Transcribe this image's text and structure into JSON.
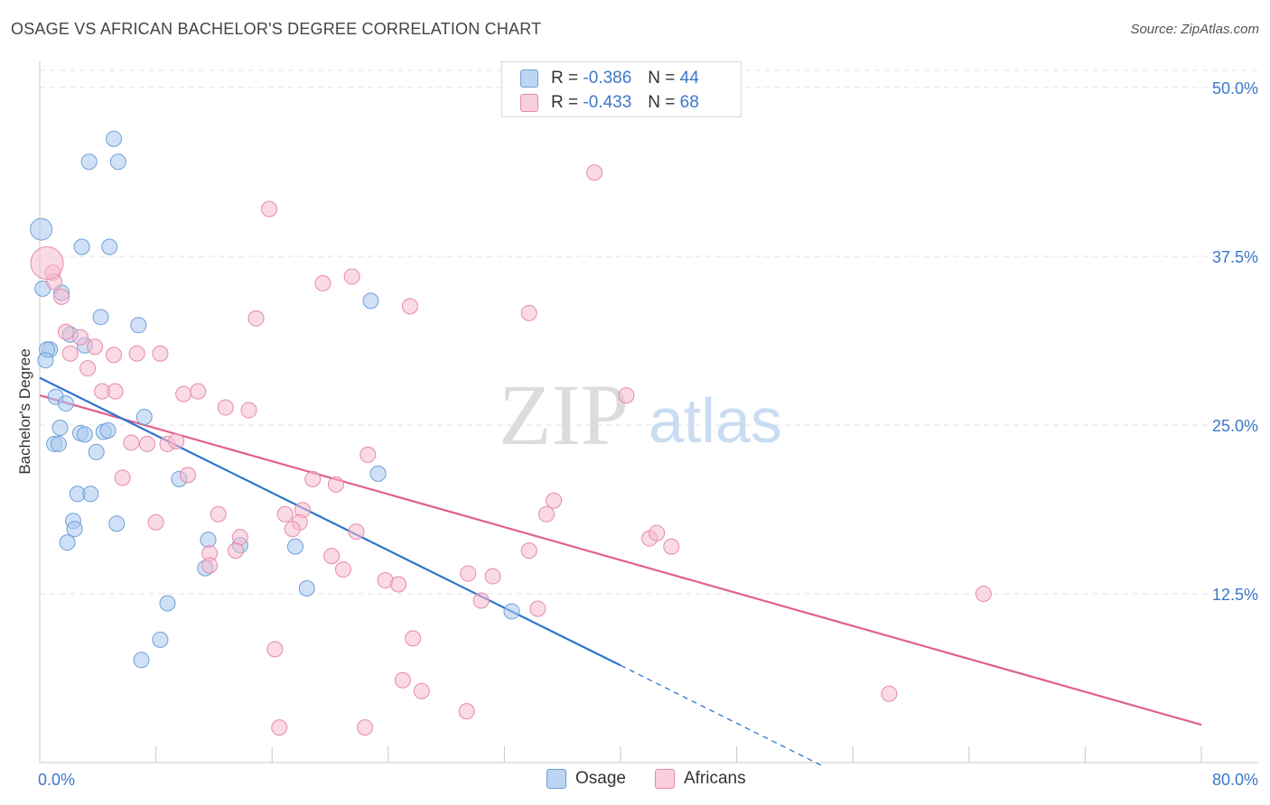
{
  "title": "OSAGE VS AFRICAN BACHELOR'S DEGREE CORRELATION CHART",
  "source": "Source: ZipAtlas.com",
  "watermark": {
    "zip": "ZIP",
    "atlas": "atlas"
  },
  "colors": {
    "osage_fill": "#aac8f0",
    "osage_stroke": "#6d9fd8",
    "osage_line": "#2f74d0",
    "africans_fill": "#f6bcd0",
    "africans_stroke": "#e58aa9",
    "africans_line": "#e0608a",
    "tick_text": "#3b78c9",
    "grid": "#e2e2e2"
  },
  "legend": {
    "osage": {
      "r_label": "R =",
      "r_value": "-0.386",
      "n_label": "N =",
      "n_value": "44"
    },
    "africans": {
      "r_label": "R =",
      "r_value": "-0.433",
      "n_label": "N =",
      "n_value": "68"
    }
  },
  "chart_data": {
    "type": "scatter",
    "title": "OSAGE VS AFRICAN BACHELOR'S DEGREE CORRELATION CHART",
    "xlabel": "",
    "ylabel": "Bachelor's Degree",
    "xlim": [
      0,
      80
    ],
    "ylim": [
      0,
      52
    ],
    "x_tick_labels": {
      "min": "0.0%",
      "max": "80.0%"
    },
    "y_ticks": [
      {
        "value": 12.5,
        "label": "12.5%"
      },
      {
        "value": 25.0,
        "label": "25.0%"
      },
      {
        "value": 37.5,
        "label": "37.5%"
      },
      {
        "value": 50.0,
        "label": "50.0%"
      }
    ],
    "series": [
      {
        "name": "Osage",
        "r": -0.386,
        "n": 44,
        "trend": {
          "x0": 0,
          "y0": 28.5,
          "x1": 40,
          "y1": 7.2,
          "dashed_to_x": 54,
          "dashed_to_y": -0.3
        },
        "points": [
          [
            5.1,
            46.2
          ],
          [
            3.4,
            44.5
          ],
          [
            5.4,
            44.5
          ],
          [
            0.1,
            39.5
          ],
          [
            2.9,
            38.2
          ],
          [
            4.8,
            38.2
          ],
          [
            0.2,
            35.1
          ],
          [
            1.5,
            34.8
          ],
          [
            4.2,
            33.0
          ],
          [
            6.8,
            32.4
          ],
          [
            2.1,
            31.7
          ],
          [
            3.1,
            30.9
          ],
          [
            0.7,
            30.6
          ],
          [
            0.5,
            30.6
          ],
          [
            0.4,
            29.8
          ],
          [
            22.8,
            34.2
          ],
          [
            1.1,
            27.1
          ],
          [
            1.8,
            26.6
          ],
          [
            7.2,
            25.6
          ],
          [
            1.4,
            24.8
          ],
          [
            2.8,
            24.4
          ],
          [
            3.1,
            24.3
          ],
          [
            4.4,
            24.5
          ],
          [
            4.7,
            24.6
          ],
          [
            1.0,
            23.6
          ],
          [
            1.3,
            23.6
          ],
          [
            3.9,
            23.0
          ],
          [
            23.3,
            21.4
          ],
          [
            9.6,
            21.0
          ],
          [
            2.6,
            19.9
          ],
          [
            3.5,
            19.9
          ],
          [
            2.3,
            17.9
          ],
          [
            2.4,
            17.3
          ],
          [
            5.3,
            17.7
          ],
          [
            1.9,
            16.3
          ],
          [
            11.6,
            16.5
          ],
          [
            13.8,
            16.1
          ],
          [
            17.6,
            16.0
          ],
          [
            11.4,
            14.4
          ],
          [
            18.4,
            12.9
          ],
          [
            8.8,
            11.8
          ],
          [
            32.5,
            11.2
          ],
          [
            8.3,
            9.1
          ],
          [
            7.0,
            7.6
          ]
        ]
      },
      {
        "name": "Africans",
        "r": -0.433,
        "n": 68,
        "trend": {
          "x0": 0,
          "y0": 27.2,
          "x1": 80,
          "y1": 2.8
        },
        "points": [
          [
            38.2,
            43.7
          ],
          [
            15.8,
            41.0
          ],
          [
            0.9,
            36.3
          ],
          [
            1.0,
            35.6
          ],
          [
            19.5,
            35.5
          ],
          [
            21.5,
            36.0
          ],
          [
            1.5,
            34.5
          ],
          [
            25.5,
            33.8
          ],
          [
            33.7,
            33.3
          ],
          [
            14.9,
            32.9
          ],
          [
            1.8,
            31.9
          ],
          [
            2.8,
            31.5
          ],
          [
            3.8,
            30.8
          ],
          [
            2.1,
            30.3
          ],
          [
            5.1,
            30.2
          ],
          [
            6.7,
            30.3
          ],
          [
            8.3,
            30.3
          ],
          [
            3.3,
            29.2
          ],
          [
            4.3,
            27.5
          ],
          [
            5.2,
            27.5
          ],
          [
            9.9,
            27.3
          ],
          [
            10.9,
            27.5
          ],
          [
            40.4,
            27.2
          ],
          [
            12.8,
            26.3
          ],
          [
            14.4,
            26.1
          ],
          [
            6.3,
            23.7
          ],
          [
            7.4,
            23.6
          ],
          [
            8.8,
            23.6
          ],
          [
            9.4,
            23.8
          ],
          [
            22.6,
            22.8
          ],
          [
            10.2,
            21.3
          ],
          [
            5.7,
            21.1
          ],
          [
            18.8,
            21.0
          ],
          [
            20.4,
            20.6
          ],
          [
            35.4,
            19.4
          ],
          [
            34.9,
            18.4
          ],
          [
            12.3,
            18.4
          ],
          [
            16.9,
            18.4
          ],
          [
            18.1,
            18.7
          ],
          [
            8.0,
            17.8
          ],
          [
            17.9,
            17.8
          ],
          [
            17.4,
            17.3
          ],
          [
            21.8,
            17.1
          ],
          [
            42.0,
            16.6
          ],
          [
            42.5,
            17.0
          ],
          [
            43.5,
            16.0
          ],
          [
            13.8,
            16.7
          ],
          [
            13.5,
            15.7
          ],
          [
            11.7,
            15.5
          ],
          [
            33.7,
            15.7
          ],
          [
            20.1,
            15.3
          ],
          [
            11.7,
            14.6
          ],
          [
            20.9,
            14.3
          ],
          [
            29.5,
            14.0
          ],
          [
            31.2,
            13.8
          ],
          [
            23.8,
            13.5
          ],
          [
            24.7,
            13.2
          ],
          [
            65.0,
            12.5
          ],
          [
            30.4,
            12.0
          ],
          [
            34.3,
            11.4
          ],
          [
            16.2,
            8.4
          ],
          [
            25.7,
            9.2
          ],
          [
            25.0,
            6.1
          ],
          [
            26.3,
            5.3
          ],
          [
            58.5,
            5.1
          ],
          [
            29.4,
            3.8
          ],
          [
            16.5,
            2.6
          ],
          [
            22.4,
            2.6
          ]
        ],
        "large_points": [
          [
            0.5,
            37.0
          ]
        ]
      }
    ]
  },
  "bottom_legend": [
    {
      "label": "Osage"
    },
    {
      "label": "Africans"
    }
  ]
}
